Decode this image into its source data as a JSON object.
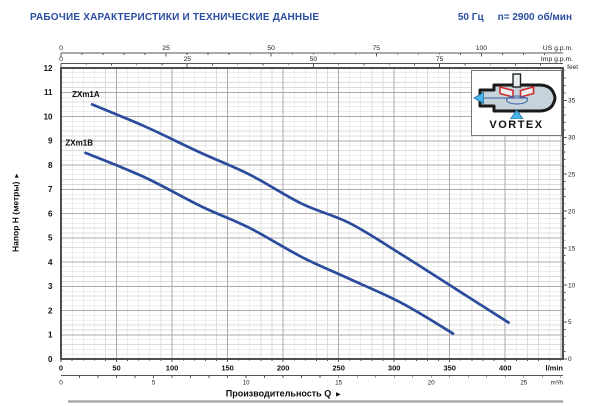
{
  "header": {
    "title": "РАБОЧИЕ ХАРАКТЕРИСТИКИ И ТЕХНИЧЕСКИЕ ДАННЫЕ",
    "frequency": "50 Гц",
    "speed": "n= 2900 об/мин"
  },
  "chart_data": {
    "type": "line",
    "x_title": "Производительность Q",
    "y_title": "Напор H (метры)",
    "axis_arrow": "▸",
    "x_domain_lmin": [
      0,
      452
    ],
    "y_domain_m": [
      0,
      12
    ],
    "grid": {
      "minor_x_lmin": 10,
      "major_x_lmin": 50,
      "minor_y_m": 0.2,
      "major_y_m": 1
    },
    "axes": [
      {
        "id": "us_gpm",
        "unit": "US g.p.m.",
        "side": "top",
        "to_lmin": 3.785,
        "majors": [
          0,
          25,
          50,
          75,
          100
        ],
        "minor_step": 5
      },
      {
        "id": "imp_gpm",
        "unit": "Imp g.p.m.",
        "side": "top",
        "to_lmin": 4.546,
        "majors": [
          0,
          25,
          50,
          75
        ],
        "minor_step": 5
      },
      {
        "id": "lmin",
        "unit": "l/min",
        "side": "bottom",
        "to_lmin": 1,
        "majors": [
          0,
          50,
          100,
          150,
          200,
          250,
          300,
          350,
          400
        ],
        "minor_step": 10
      },
      {
        "id": "m3h",
        "unit": "m³/h",
        "side": "bottom",
        "to_lmin": 16.667,
        "majors": [
          0,
          5,
          10,
          15,
          20,
          25
        ],
        "minor_step": 1
      },
      {
        "id": "meters",
        "unit": "",
        "side": "left",
        "to_m": 1,
        "majors": [
          0,
          1,
          2,
          3,
          4,
          5,
          6,
          7,
          8,
          9,
          10,
          11,
          12
        ]
      },
      {
        "id": "feet",
        "unit": "feet",
        "side": "right",
        "to_m": 0.3048,
        "majors": [
          0,
          5,
          10,
          15,
          20,
          25,
          30,
          35
        ],
        "minor_step": 1
      }
    ],
    "series": [
      {
        "name": "ZXm1A",
        "color": "#2b4b9d",
        "points_lmin_m": [
          [
            28,
            10.5
          ],
          [
            75,
            9.6
          ],
          [
            126,
            8.5
          ],
          [
            170,
            7.6
          ],
          [
            217,
            6.4
          ],
          [
            260,
            5.6
          ],
          [
            307,
            4.3
          ],
          [
            355,
            2.9
          ],
          [
            403,
            1.5
          ]
        ]
      },
      {
        "name": "ZXm1B",
        "color": "#2b4b9d",
        "points_lmin_m": [
          [
            22,
            8.5
          ],
          [
            75,
            7.5
          ],
          [
            126,
            6.3
          ],
          [
            170,
            5.4
          ],
          [
            217,
            4.2
          ],
          [
            260,
            3.3
          ],
          [
            307,
            2.3
          ],
          [
            353,
            1.05
          ]
        ]
      }
    ],
    "colors": {
      "grid_minor": "#dcdcdc",
      "grid_major": "#ababab",
      "border": "#3b3b3b",
      "axis_line": "#555555",
      "tick_text": "#222222",
      "title_text": "#0d0d0d",
      "divider": "#a9a9a9"
    }
  },
  "inset": {
    "label": "VORTEX",
    "casing_color": "#c6d3da",
    "impeller_color": "#cf2e2e",
    "flow_arrow_color": "#4ab5e5",
    "swirl_color": "#3a5fa8"
  }
}
